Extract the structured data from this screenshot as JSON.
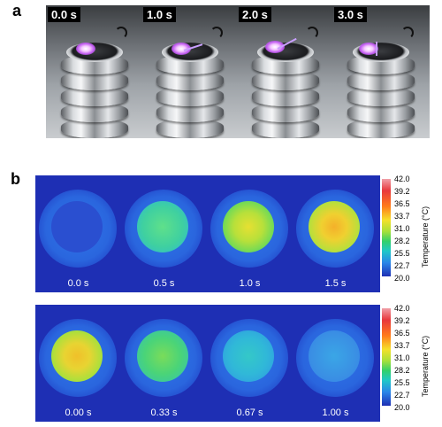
{
  "panel_a": {
    "letter": "a",
    "frames": [
      {
        "label": "0.0 s"
      },
      {
        "label": "1.0 s"
      },
      {
        "label": "2.0 s"
      },
      {
        "label": "3.0 s"
      }
    ]
  },
  "panel_b": {
    "letter": "b",
    "heating": {
      "frames": [
        {
          "label": "0.0 s"
        },
        {
          "label": "0.5 s"
        },
        {
          "label": "1.0 s"
        },
        {
          "label": "1.5 s"
        }
      ]
    },
    "cooling": {
      "frames": [
        {
          "label": "0.00 s"
        },
        {
          "label": "0.33 s"
        },
        {
          "label": "0.67 s"
        },
        {
          "label": "1.00 s"
        }
      ]
    },
    "colorbar": {
      "title": "Temperature (°C)",
      "ticks": [
        "42.0",
        "39.2",
        "36.5",
        "33.7",
        "31.0",
        "28.2",
        "25.5",
        "22.7",
        "20.0"
      ]
    }
  }
}
